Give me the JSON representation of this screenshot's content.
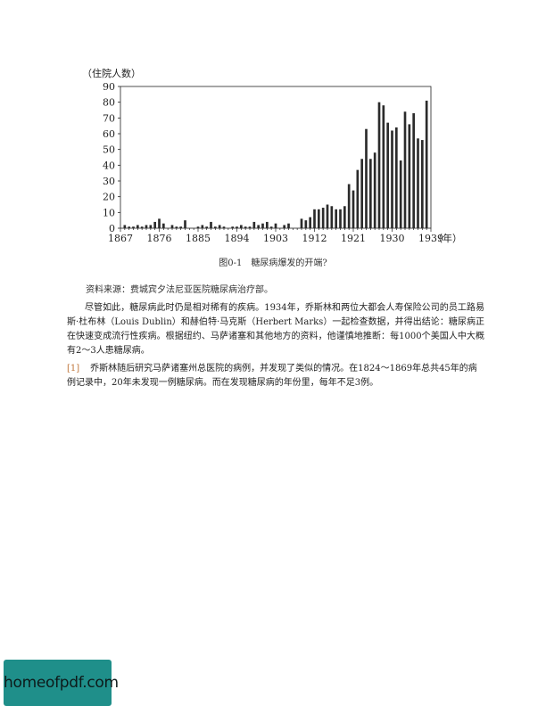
{
  "chart_data": {
    "type": "bar",
    "ylabel": "（住院人数）",
    "xlabel": "（年）",
    "ylim": [
      0,
      90
    ],
    "yticks": [
      0,
      10,
      20,
      30,
      40,
      50,
      60,
      70,
      80,
      90
    ],
    "xlim": [
      1867,
      1939
    ],
    "xticks": [
      "1867",
      "1876",
      "1885",
      "1894",
      "1903",
      "1912",
      "1921",
      "1930",
      "1939"
    ],
    "grid": false,
    "x": [
      1867,
      1868,
      1869,
      1870,
      1871,
      1872,
      1873,
      1874,
      1875,
      1876,
      1877,
      1878,
      1879,
      1880,
      1881,
      1882,
      1883,
      1884,
      1885,
      1886,
      1887,
      1888,
      1889,
      1890,
      1891,
      1892,
      1893,
      1894,
      1895,
      1896,
      1897,
      1898,
      1899,
      1900,
      1901,
      1902,
      1903,
      1904,
      1905,
      1906,
      1907,
      1908,
      1909,
      1910,
      1911,
      1912,
      1913,
      1914,
      1915,
      1916,
      1917,
      1918,
      1919,
      1920,
      1921,
      1922,
      1923,
      1924,
      1925,
      1926,
      1927,
      1928,
      1929,
      1930,
      1931,
      1932,
      1933,
      1934,
      1935,
      1936,
      1937,
      1938,
      1939
    ],
    "values": [
      0,
      2,
      1,
      1,
      2,
      1,
      2,
      2,
      4,
      6,
      3,
      0,
      2,
      1,
      1,
      5,
      0,
      0,
      1,
      2,
      1,
      4,
      1,
      2,
      1,
      0,
      1,
      1,
      2,
      1,
      1,
      4,
      2,
      3,
      4,
      1,
      3,
      0,
      2,
      3,
      0,
      0,
      6,
      5,
      7,
      12,
      12,
      13,
      15,
      14,
      12,
      12,
      14,
      28,
      24,
      37,
      44,
      63,
      44,
      48,
      80,
      78,
      67,
      62,
      64,
      43,
      74,
      66,
      73,
      57,
      56,
      81,
      0
    ]
  },
  "figure": {
    "caption": "图0-1　糖尿病爆发的开端?"
  },
  "text": {
    "source": "资料来源：费城宾夕法尼亚医院糖尿病治疗部。",
    "paragraph": "尽管如此，糖尿病此时仍是相对稀有的疾病。1934年，乔斯林和两位大都会人寿保险公司的员工路易斯·杜布林（Louis Dublin）和赫伯特·马克斯（Herbert Marks）一起检查数据，并得出结论：糖尿病正在快速变成流行性疾病。根据纽约、马萨诸塞和其他地方的资料，他谨慎地推断：每1000个美国人中大概有2～3人患糖尿病。",
    "footnote_mark": "[1]",
    "footnote": "乔斯林随后研究马萨诸塞州总医院的病例，并发现了类似的情况。在1824～1869年总共45年的病例记录中，20年未发现一例糖尿病。而在发现糖尿病的年份里，每年不足3例。"
  },
  "watermark": {
    "text": "homeofpdf.com",
    "color": "#1f8f8a"
  }
}
